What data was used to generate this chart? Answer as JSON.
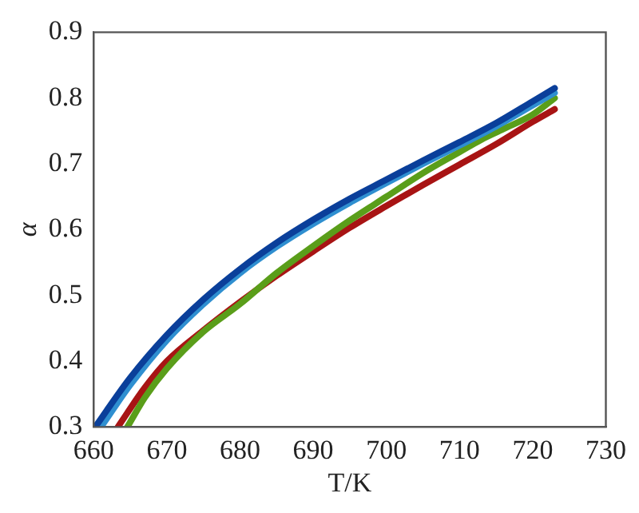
{
  "chart_data": {
    "type": "line",
    "xlabel": "T/K",
    "ylabel": "α",
    "xlim": [
      660,
      730
    ],
    "ylim": [
      0.3,
      0.9
    ],
    "xticks": [
      660,
      670,
      680,
      690,
      700,
      710,
      720,
      730
    ],
    "yticks": [
      0.3,
      0.4,
      0.5,
      0.6,
      0.7,
      0.8,
      0.9
    ],
    "grid": false,
    "legend": false,
    "marker": "none",
    "line_style": "solid",
    "series": [
      {
        "color": "#0a3f9a",
        "x": [
          660.2,
          665,
          670,
          675,
          680,
          685,
          690,
          695,
          700,
          705,
          710,
          715,
          720,
          723
        ],
        "values": [
          0.3,
          0.375,
          0.44,
          0.494,
          0.54,
          0.58,
          0.615,
          0.647,
          0.676,
          0.705,
          0.733,
          0.762,
          0.795,
          0.815
        ]
      },
      {
        "color": "#2f8fd0",
        "x": [
          661,
          665,
          670,
          675,
          680,
          685,
          690,
          695,
          700,
          705,
          710,
          715,
          720,
          723
        ],
        "values": [
          0.3,
          0.364,
          0.432,
          0.487,
          0.534,
          0.574,
          0.609,
          0.641,
          0.671,
          0.7,
          0.728,
          0.757,
          0.789,
          0.808
        ]
      },
      {
        "color": "#5a9e1a",
        "x": [
          664.6,
          667,
          670,
          675,
          680,
          685,
          690,
          695,
          700,
          705,
          710,
          713,
          716,
          720,
          723
        ],
        "values": [
          0.3,
          0.345,
          0.389,
          0.445,
          0.487,
          0.534,
          0.575,
          0.614,
          0.65,
          0.686,
          0.718,
          0.737,
          0.753,
          0.775,
          0.8
        ]
      },
      {
        "color": "#a81414",
        "x": [
          663.3,
          667,
          670,
          675,
          680,
          685,
          690,
          695,
          700,
          705,
          710,
          715,
          720,
          723
        ],
        "values": [
          0.3,
          0.36,
          0.4,
          0.447,
          0.49,
          0.53,
          0.567,
          0.603,
          0.636,
          0.668,
          0.699,
          0.73,
          0.764,
          0.783
        ]
      }
    ]
  }
}
